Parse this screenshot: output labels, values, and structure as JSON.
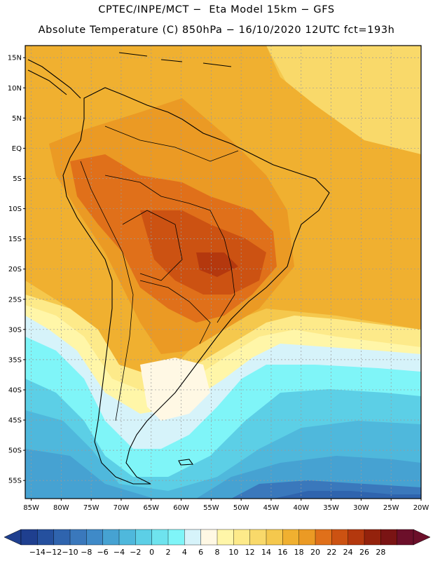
{
  "header": {
    "line1": "CPTEC/INPE/MCT −  Eta Model 15km − GFS",
    "line2": "Absolute Temperature (C) 850hPa − 16/10/2020 12UTC fct=193h"
  },
  "map": {
    "lat_labels": [
      "15N",
      "10N",
      "5N",
      "EQ",
      "5S",
      "10S",
      "15S",
      "20S",
      "25S",
      "30S",
      "35S",
      "40S",
      "45S",
      "50S",
      "55S"
    ],
    "lat_values": [
      15,
      10,
      5,
      0,
      -5,
      -10,
      -15,
      -20,
      -25,
      -30,
      -35,
      -40,
      -45,
      -50,
      -55
    ],
    "lon_labels": [
      "85W",
      "80W",
      "75W",
      "70W",
      "65W",
      "60W",
      "55W",
      "50W",
      "45W",
      "40W",
      "35W",
      "30W",
      "25W",
      "20W"
    ],
    "lon_values": [
      -85,
      -80,
      -75,
      -70,
      -65,
      -60,
      -55,
      -50,
      -45,
      -40,
      -35,
      -30,
      -25,
      -20
    ],
    "lon_range": [
      -86,
      -20
    ],
    "lat_range": [
      -58,
      17
    ]
  },
  "colorbar": {
    "labels": [
      "-14",
      "-12",
      "-10",
      "-8",
      "-6",
      "-4",
      "-2",
      "0",
      "2",
      "4",
      "6",
      "8",
      "10",
      "12",
      "14",
      "16",
      "18",
      "20",
      "22",
      "24",
      "26",
      "28"
    ],
    "colors": [
      "#1f3f8f",
      "#25509e",
      "#2f64ae",
      "#3a78bc",
      "#3f8ac8",
      "#46a2d2",
      "#4fb8dc",
      "#5ccfe6",
      "#6ee3ee",
      "#7ff5f8",
      "#d6f3fa",
      "#fff8e4",
      "#fff6a8",
      "#fdea8a",
      "#f9d96a",
      "#f5c84d",
      "#f0b030",
      "#eb9a24",
      "#e0701a",
      "#cc5212",
      "#b4380e",
      "#94220c",
      "#7a1414",
      "#6c0f2a"
    ]
  },
  "colors": {
    "gridline": "#9a9a9a",
    "frame": "#000000"
  }
}
